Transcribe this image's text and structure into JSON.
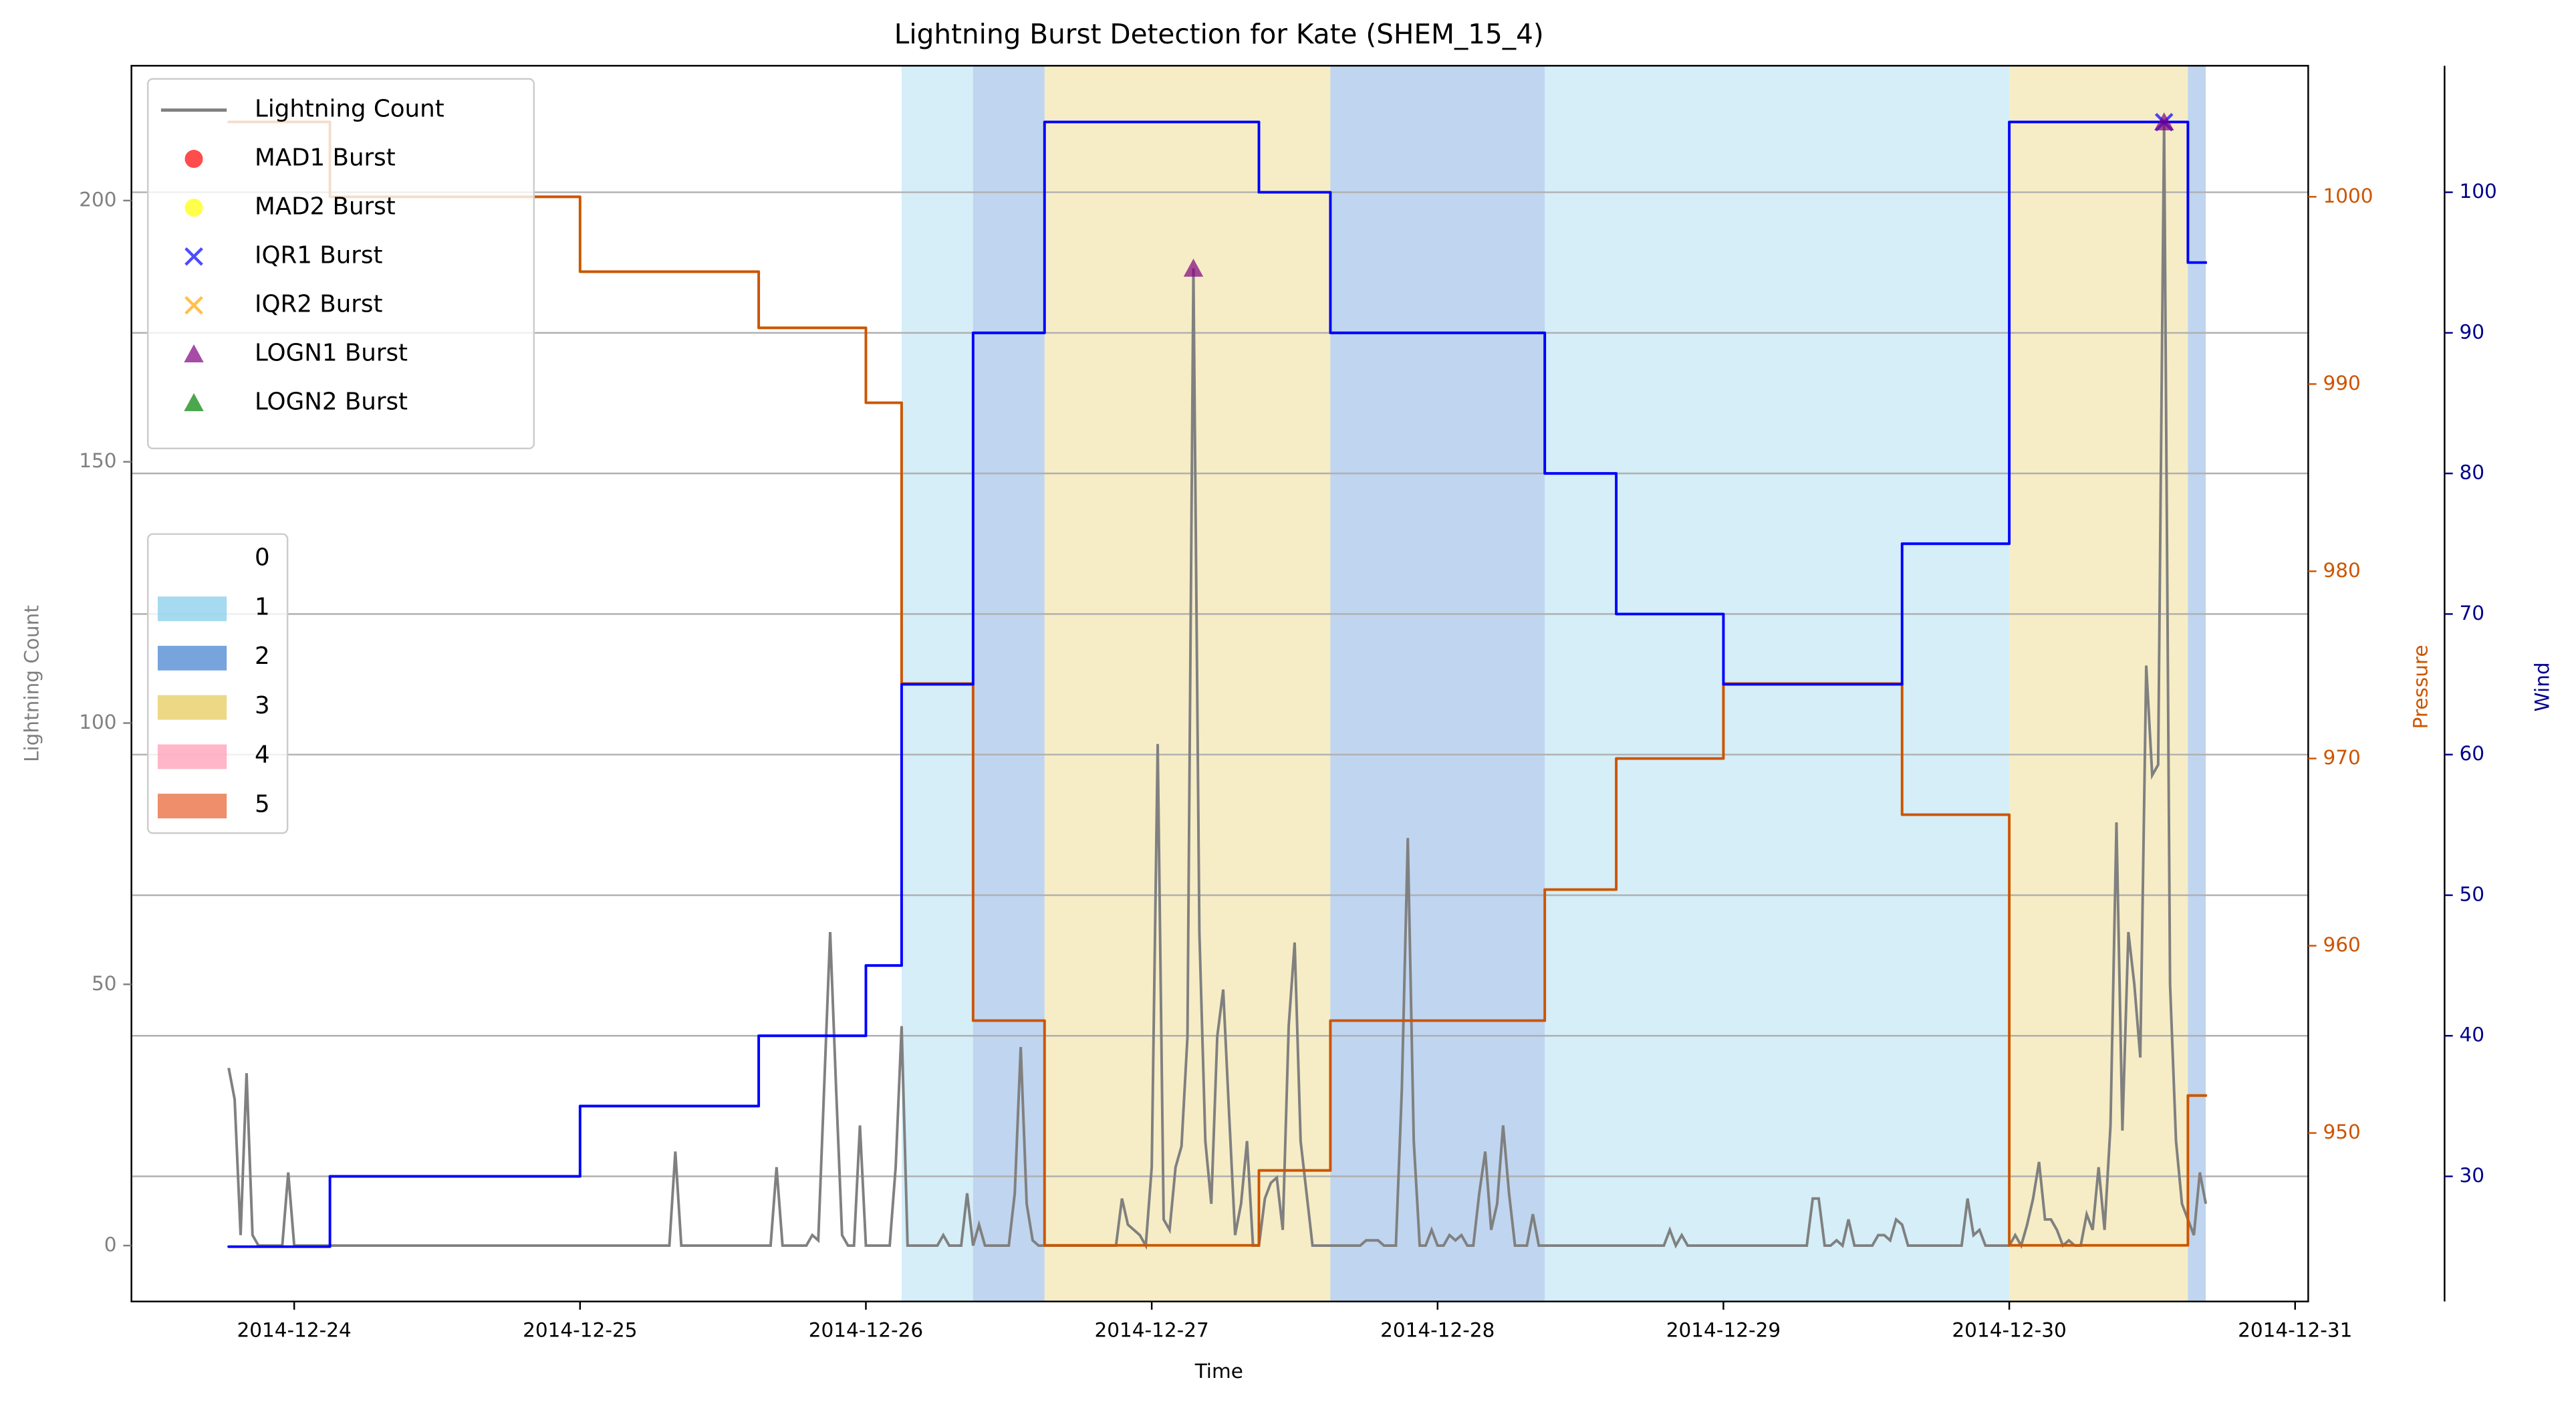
{
  "chart_data": {
    "type": "line",
    "title": "Lightning Burst Detection for Kate (SHEM_15_4)",
    "xlabel": "Time",
    "ylabel": "Lightning Count",
    "y2label": "Pressure",
    "y3label": "Wind",
    "xlim": [
      "2014-12-23T10:20",
      "2014-12-31T01:06"
    ],
    "xticks": [
      "2014-12-24",
      "2014-12-25",
      "2014-12-26",
      "2014-12-27",
      "2014-12-28",
      "2014-12-29",
      "2014-12-30",
      "2014-12-31"
    ],
    "ylim": [
      -10.7,
      225.8
    ],
    "yticks": [
      0,
      50,
      100,
      150,
      200
    ],
    "y2lim": [
      941.0,
      1007.0
    ],
    "y2ticks": [
      950,
      960,
      970,
      980,
      990,
      1000
    ],
    "y3lim": [
      21.1,
      109.0
    ],
    "y3ticks": [
      30,
      40,
      50,
      60,
      70,
      80,
      90,
      100
    ],
    "grid": true,
    "legend": "upper left",
    "ycolor": "#808080",
    "y2color": "#cc5500",
    "y3color": "#00008b",
    "series": [
      {
        "name": "Lightning Count",
        "color": "#808080",
        "marker": "line",
        "x": [
          "2014-12-23T18:30",
          "2014-12-23T19:00",
          "2014-12-23T19:30",
          "2014-12-23T20:00",
          "2014-12-23T20:30",
          "2014-12-23T21:00",
          "2014-12-23T23:00",
          "2014-12-23T23:30",
          "2014-12-24T00:00",
          "2014-12-25T07:30",
          "2014-12-25T08:00",
          "2014-12-25T08:30",
          "2014-12-25T16:00",
          "2014-12-25T16:30",
          "2014-12-25T17:00",
          "2014-12-25T19:00",
          "2014-12-25T19:30",
          "2014-12-25T20:00",
          "2014-12-25T21:00",
          "2014-12-25T21:30",
          "2014-12-25T22:00",
          "2014-12-25T22:30",
          "2014-12-25T23:00",
          "2014-12-25T23:30",
          "2014-12-26T00:00",
          "2014-12-26T02:00",
          "2014-12-26T02:30",
          "2014-12-26T03:00",
          "2014-12-26T03:30",
          "2014-12-26T06:00",
          "2014-12-26T06:30",
          "2014-12-26T07:00",
          "2014-12-26T08:00",
          "2014-12-26T08:30",
          "2014-12-26T09:00",
          "2014-12-26T09:30",
          "2014-12-26T10:00",
          "2014-12-26T12:00",
          "2014-12-26T12:30",
          "2014-12-26T13:00",
          "2014-12-26T13:30",
          "2014-12-26T14:00",
          "2014-12-26T14:30",
          "2014-12-26T21:00",
          "2014-12-26T21:30",
          "2014-12-26T22:00",
          "2014-12-26T23:00",
          "2014-12-26T23:30",
          "2014-12-27T00:00",
          "2014-12-27T00:30",
          "2014-12-27T01:00",
          "2014-12-27T01:30",
          "2014-12-27T02:00",
          "2014-12-27T02:30",
          "2014-12-27T03:00",
          "2014-12-27T03:30",
          "2014-12-27T04:00",
          "2014-12-27T04:30",
          "2014-12-27T05:00",
          "2014-12-27T05:30",
          "2014-12-27T06:00",
          "2014-12-27T06:30",
          "2014-12-27T07:00",
          "2014-12-27T07:30",
          "2014-12-27T08:00",
          "2014-12-27T08:30",
          "2014-12-27T09:00",
          "2014-12-27T09:30",
          "2014-12-27T10:00",
          "2014-12-27T10:30",
          "2014-12-27T11:00",
          "2014-12-27T11:30",
          "2014-12-27T12:00",
          "2014-12-27T12:30",
          "2014-12-27T13:00",
          "2014-12-27T13:30",
          "2014-12-27T17:30",
          "2014-12-27T18:00",
          "2014-12-27T19:00",
          "2014-12-27T19:30",
          "2014-12-27T20:30",
          "2014-12-27T21:00",
          "2014-12-27T21:30",
          "2014-12-27T22:00",
          "2014-12-27T22:30",
          "2014-12-27T23:00",
          "2014-12-27T23:30",
          "2014-12-28T00:00",
          "2014-12-28T00:30",
          "2014-12-28T01:00",
          "2014-12-28T01:30",
          "2014-12-28T02:00",
          "2014-12-28T02:30",
          "2014-12-28T03:00",
          "2014-12-28T03:30",
          "2014-12-28T04:00",
          "2014-12-28T04:30",
          "2014-12-28T05:00",
          "2014-12-28T05:30",
          "2014-12-28T06:00",
          "2014-12-28T06:30",
          "2014-12-28T07:30",
          "2014-12-28T08:00",
          "2014-12-28T08:30",
          "2014-12-28T19:00",
          "2014-12-28T19:30",
          "2014-12-28T20:00",
          "2014-12-28T20:30",
          "2014-12-28T21:00",
          "2014-12-29T07:00",
          "2014-12-29T07:30",
          "2014-12-29T08:00",
          "2014-12-29T08:30",
          "2014-12-29T09:00",
          "2014-12-29T09:30",
          "2014-12-29T10:00",
          "2014-12-29T10:30",
          "2014-12-29T11:00",
          "2014-12-29T12:30",
          "2014-12-29T13:00",
          "2014-12-29T13:30",
          "2014-12-29T14:00",
          "2014-12-29T14:30",
          "2014-12-29T15:00",
          "2014-12-29T15:30",
          "2014-12-29T20:00",
          "2014-12-29T20:30",
          "2014-12-29T21:00",
          "2014-12-29T21:30",
          "2014-12-29T22:00",
          "2014-12-30T00:00",
          "2014-12-30T00:30",
          "2014-12-30T01:00",
          "2014-12-30T01:30",
          "2014-12-30T02:00",
          "2014-12-30T02:30",
          "2014-12-30T03:00",
          "2014-12-30T03:30",
          "2014-12-30T04:00",
          "2014-12-30T04:30",
          "2014-12-30T05:00",
          "2014-12-30T05:30",
          "2014-12-30T06:00",
          "2014-12-30T06:30",
          "2014-12-30T07:00",
          "2014-12-30T07:30",
          "2014-12-30T08:00",
          "2014-12-30T08:30",
          "2014-12-30T09:00",
          "2014-12-30T09:30",
          "2014-12-30T10:00",
          "2014-12-30T10:30",
          "2014-12-30T11:00",
          "2014-12-30T11:30",
          "2014-12-30T12:00",
          "2014-12-30T12:30",
          "2014-12-30T13:00",
          "2014-12-30T13:30",
          "2014-12-30T14:00",
          "2014-12-30T14:30",
          "2014-12-30T15:00",
          "2014-12-30T15:30",
          "2014-12-30T16:00",
          "2014-12-30T16:30"
        ],
        "values": [
          34,
          28,
          2,
          33,
          2,
          0,
          0,
          14,
          0,
          0,
          18,
          0,
          0,
          15,
          0,
          0,
          2,
          1,
          60,
          30,
          2,
          0,
          0,
          23,
          0,
          0,
          15,
          42,
          0,
          0,
          2,
          0,
          0,
          10,
          0,
          4,
          0,
          0,
          10,
          38,
          8,
          1,
          0,
          0,
          9,
          4,
          2,
          0,
          15,
          96,
          5,
          3,
          15,
          19,
          40,
          187,
          60,
          20,
          8,
          40,
          49,
          25,
          2,
          8,
          20,
          0,
          0,
          9,
          12,
          13,
          3,
          42,
          58,
          20,
          10,
          0,
          0,
          1,
          1,
          0,
          0,
          30,
          78,
          20,
          0,
          0,
          3,
          0,
          0,
          2,
          1,
          2,
          0,
          0,
          10,
          18,
          3,
          8,
          23,
          10,
          0,
          0,
          6,
          0,
          0,
          3,
          0,
          2,
          0,
          0,
          9,
          9,
          0,
          0,
          1,
          0,
          5,
          0,
          0,
          2,
          2,
          1,
          5,
          4,
          0,
          0,
          9,
          2,
          3,
          0,
          0,
          2,
          0,
          4,
          9,
          16,
          5,
          5,
          3,
          0,
          1,
          0,
          0,
          6,
          3,
          15,
          3,
          23,
          81,
          22,
          60,
          50,
          36,
          111,
          90,
          92,
          215,
          50,
          20,
          8,
          5,
          2,
          14,
          8
        ]
      },
      {
        "name": "MAD1 Burst",
        "color": "#ff0000",
        "marker": "o",
        "x": [],
        "values": []
      },
      {
        "name": "MAD2 Burst",
        "color": "#ffff00",
        "marker": "o",
        "x": [],
        "values": []
      },
      {
        "name": "IQR1 Burst",
        "color": "#0000ff",
        "marker": "x",
        "x": [
          "2014-12-30T13:00"
        ],
        "values": [
          215
        ]
      },
      {
        "name": "IQR2 Burst",
        "color": "#ffa500",
        "marker": "x",
        "x": [],
        "values": []
      },
      {
        "name": "LOGN1 Burst",
        "color": "#800080",
        "marker": "^",
        "x": [
          "2014-12-27T03:30",
          "2014-12-30T13:00"
        ],
        "values": [
          187,
          215
        ]
      },
      {
        "name": "LOGN2 Burst",
        "color": "#008000",
        "marker": "^",
        "x": [],
        "values": []
      }
    ],
    "step_series": [
      {
        "axis": "y2",
        "color": "#cc5500",
        "x": [
          "2014-12-23T18:30",
          "2014-12-24T03:00",
          "2014-12-25T00:00",
          "2014-12-25T15:00",
          "2014-12-26T00:00",
          "2014-12-26T03:00",
          "2014-12-26T09:00",
          "2014-12-26T15:00",
          "2014-12-27T09:00",
          "2014-12-27T15:00",
          "2014-12-28T09:00",
          "2014-12-28T15:00",
          "2014-12-29T00:00",
          "2014-12-29T15:00",
          "2014-12-30T00:00",
          "2014-12-30T15:00",
          "2014-12-30T16:30"
        ],
        "values": [
          1004,
          1000,
          996,
          993,
          989,
          974,
          956,
          944,
          948,
          956,
          963,
          970,
          974,
          967,
          944,
          952,
          952
        ]
      },
      {
        "axis": "y3",
        "color": "#0000ff",
        "x": [
          "2014-12-23T18:30",
          "2014-12-24T03:00",
          "2014-12-25T00:00",
          "2014-12-25T15:00",
          "2014-12-26T00:00",
          "2014-12-26T03:00",
          "2014-12-26T09:00",
          "2014-12-26T15:00",
          "2014-12-27T09:00",
          "2014-12-27T15:00",
          "2014-12-28T09:00",
          "2014-12-28T15:00",
          "2014-12-29T00:00",
          "2014-12-29T15:00",
          "2014-12-30T00:00",
          "2014-12-30T15:00",
          "2014-12-30T16:30"
        ],
        "values": [
          25,
          30,
          35,
          40,
          45,
          65,
          90,
          105,
          100,
          90,
          80,
          70,
          65,
          75,
          105,
          95,
          95
        ]
      }
    ],
    "spans": [
      {
        "start": "2014-12-26T03:00",
        "end": "2014-12-26T09:00",
        "category": "1"
      },
      {
        "start": "2014-12-26T09:00",
        "end": "2014-12-26T15:00",
        "category": "2"
      },
      {
        "start": "2014-12-26T15:00",
        "end": "2014-12-27T15:00",
        "category": "3"
      },
      {
        "start": "2014-12-27T15:00",
        "end": "2014-12-28T09:00",
        "category": "2"
      },
      {
        "start": "2014-12-28T09:00",
        "end": "2014-12-30T00:00",
        "category": "1"
      },
      {
        "start": "2014-12-30T00:00",
        "end": "2014-12-30T15:00",
        "category": "3"
      },
      {
        "start": "2014-12-30T15:00",
        "end": "2014-12-30T16:30",
        "category": "2"
      }
    ],
    "span_legend": [
      {
        "name": "0",
        "color": "#ffffff"
      },
      {
        "name": "1",
        "color": "#87ceeb"
      },
      {
        "name": "2",
        "color": "#4a86d0"
      },
      {
        "name": "3",
        "color": "#e6cc5c"
      },
      {
        "name": "4",
        "color": "#ff9eb5"
      },
      {
        "name": "5",
        "color": "#e8683a"
      }
    ]
  }
}
